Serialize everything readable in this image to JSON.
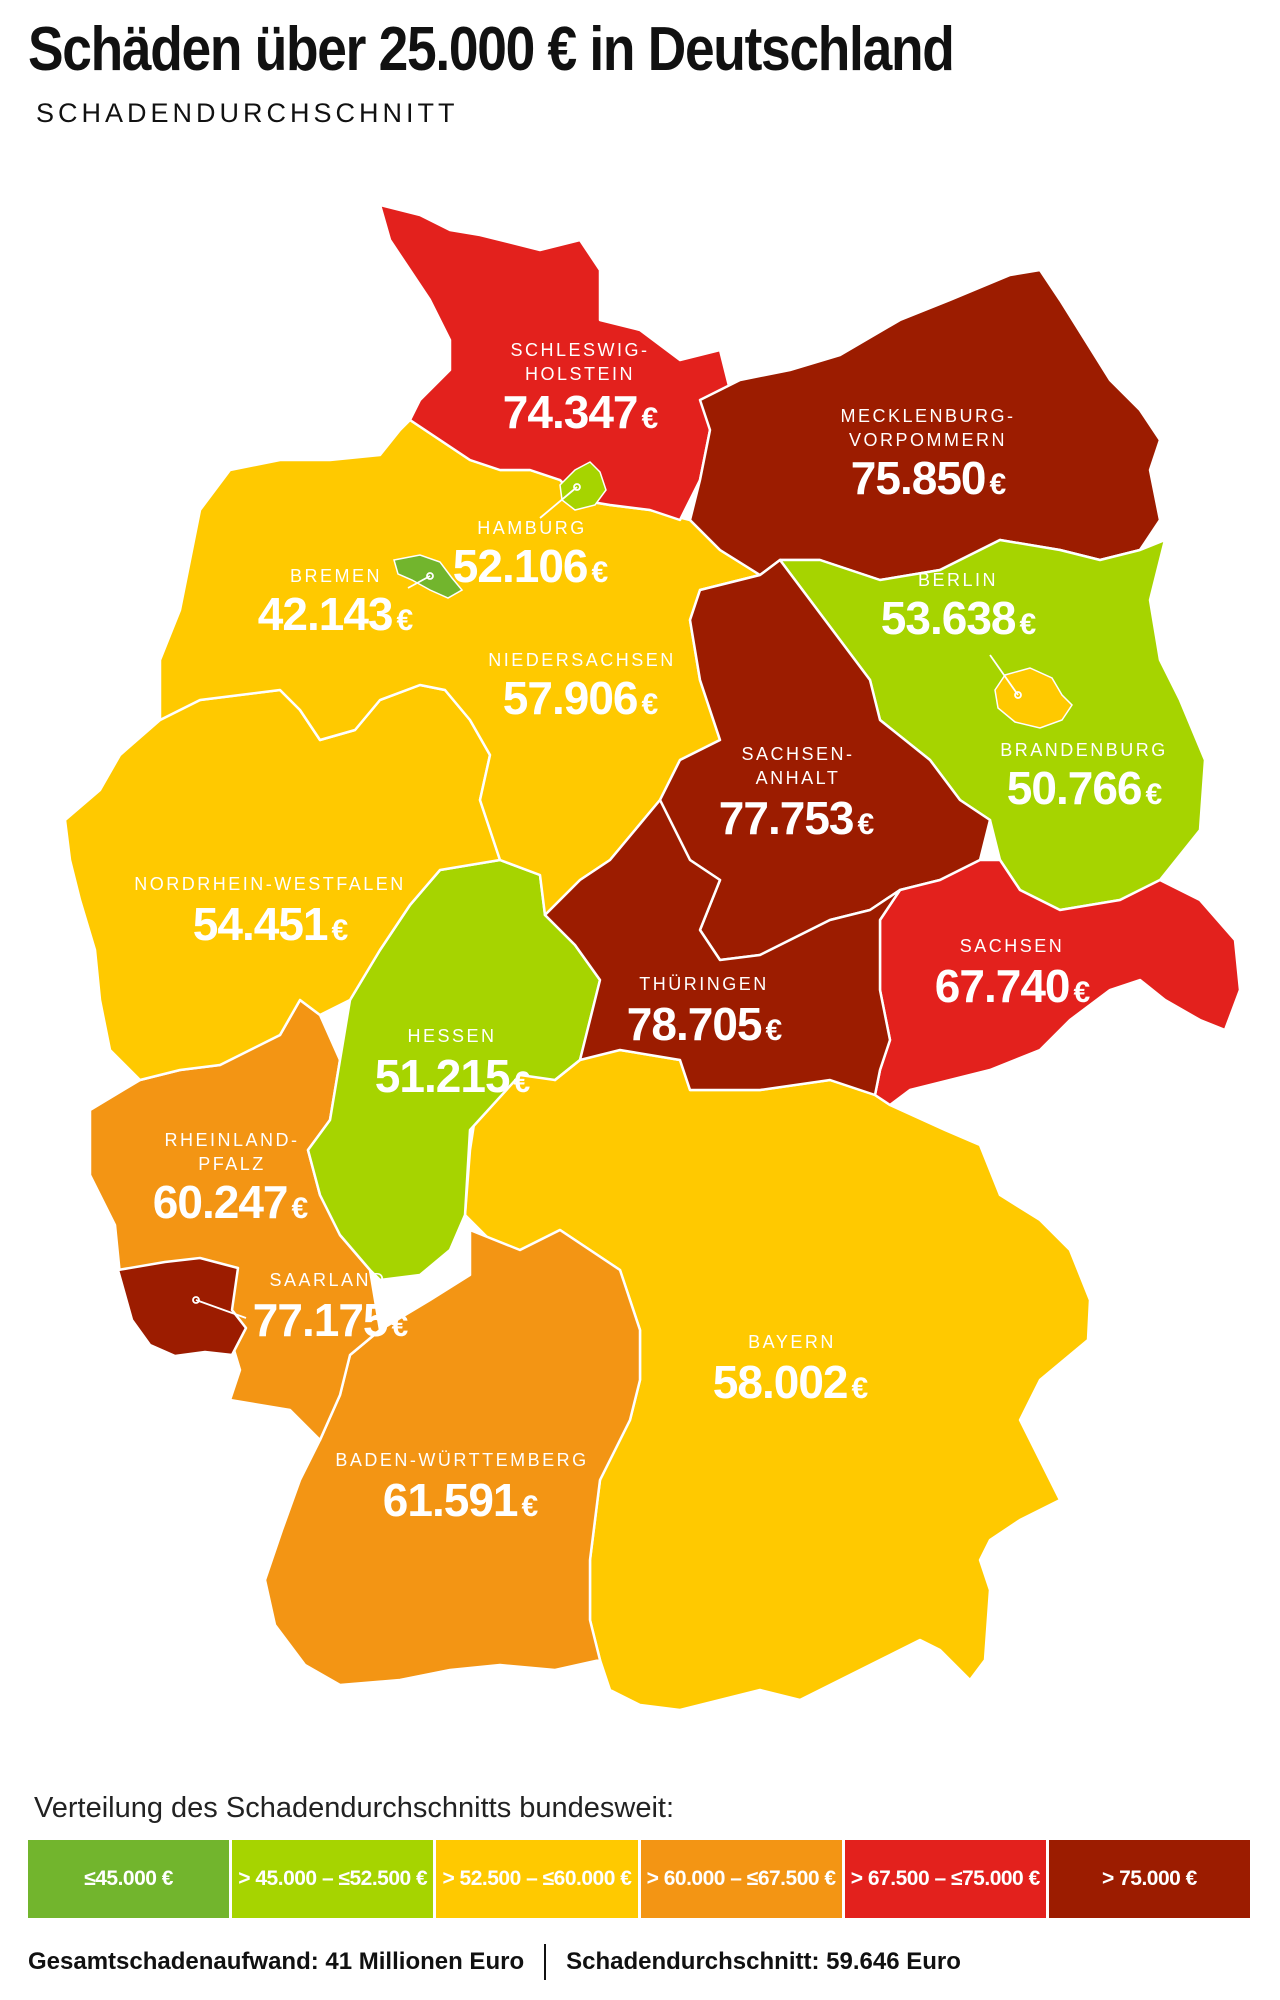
{
  "header": {
    "title": "Schäden über 25.000 € in Deutschland",
    "subtitle": "SCHADENDURCHSCHNITT"
  },
  "colors": {
    "band1": "#72b52d",
    "band2": "#a6d400",
    "band3": "#ffc900",
    "band4": "#f39514",
    "band5": "#e3211d",
    "band6": "#9c1c00"
  },
  "states": {
    "schleswig_holstein": {
      "name_1": "SCHLESWIG-",
      "name_2": "HOLSTEIN",
      "value": "74.347",
      "currency": "€"
    },
    "mecklenburg_vorpommern": {
      "name_1": "MECKLENBURG-",
      "name_2": "VORPOMMERN",
      "value": "75.850",
      "currency": "€"
    },
    "hamburg": {
      "name": "HAMBURG",
      "value": "52.106",
      "currency": "€"
    },
    "bremen": {
      "name": "BREMEN",
      "value": "42.143",
      "currency": "€"
    },
    "niedersachsen": {
      "name": "NIEDERSACHSEN",
      "value": "57.906",
      "currency": "€"
    },
    "berlin": {
      "name": "BERLIN",
      "value": "53.638",
      "currency": "€"
    },
    "brandenburg": {
      "name": "BRANDENBURG",
      "value": "50.766",
      "currency": "€"
    },
    "sachsen_anhalt": {
      "name_1": "SACHSEN-",
      "name_2": "ANHALT",
      "value": "77.753",
      "currency": "€"
    },
    "nordrhein_westfalen": {
      "name": "NORDRHEIN-WESTFALEN",
      "value": "54.451",
      "currency": "€"
    },
    "sachsen": {
      "name": "SACHSEN",
      "value": "67.740",
      "currency": "€"
    },
    "hessen": {
      "name": "HESSEN",
      "value": "51.215",
      "currency": "€"
    },
    "thueringen": {
      "name": "THÜRINGEN",
      "value": "78.705",
      "currency": "€"
    },
    "rheinland_pfalz": {
      "name_1": "RHEINLAND-",
      "name_2": "PFALZ",
      "value": "60.247",
      "currency": "€"
    },
    "saarland": {
      "name": "SAARLAND",
      "value": "77.175",
      "currency": "€"
    },
    "bayern": {
      "name": "BAYERN",
      "value": "58.002",
      "currency": "€"
    },
    "baden_wuerttemberg": {
      "name": "BADEN-WÜRTTEMBERG",
      "value": "61.591",
      "currency": "€"
    }
  },
  "legend": {
    "heading": "Verteilung des Schadendurchschnitts bundesweit:",
    "items": [
      {
        "label": "≤45.000 €",
        "color": "#72b52d"
      },
      {
        "label": "> 45.000 – ≤52.500 €",
        "color": "#a6d400"
      },
      {
        "label": "> 52.500 – ≤60.000 €",
        "color": "#ffc900"
      },
      {
        "label": "> 60.000 – ≤67.500 €",
        "color": "#f39514"
      },
      {
        "label": "> 67.500 – ≤75.000 €",
        "color": "#e3211d"
      },
      {
        "label": "> 75.000 €",
        "color": "#9c1c00"
      }
    ]
  },
  "footer": {
    "total": "Gesamtschadenaufwand: 41 Millionen Euro",
    "average": "Schadendurchschnitt: 59.646 Euro"
  }
}
